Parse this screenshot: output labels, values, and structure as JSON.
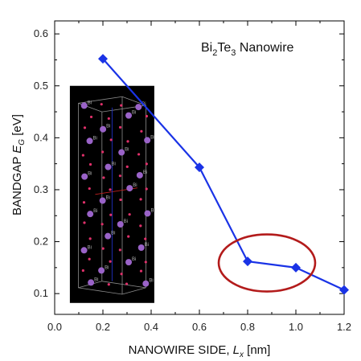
{
  "colors": {
    "series": "#1a33e6",
    "marker": "#1a33e6",
    "highlight": "#b31b1b",
    "inset_bg": "#000000",
    "atom_bi": "#9a63c8",
    "atom_te": "#e0306a"
  },
  "chart_data": {
    "type": "line",
    "title": {
      "part1": "Bi",
      "sub1": "2",
      "part2": "Te",
      "sub2": "3",
      "part3": " Nanowire"
    },
    "xlabel": {
      "main": "NANOWIRE SIDE, ",
      "var": "L",
      "sub": "x",
      "unit": " [nm]"
    },
    "ylabel": {
      "main": "BANDGAP ",
      "var": "E",
      "sub": "G",
      "unit": " [eV]"
    },
    "xlim": [
      0.0,
      1.2
    ],
    "ylim": [
      0.06,
      0.625
    ],
    "xticks": [
      "0.0",
      "0.2",
      "0.4",
      "0.6",
      "0.8",
      "1.0",
      "1.2"
    ],
    "yticks": [
      "0.1",
      "0.2",
      "0.3",
      "0.4",
      "0.5",
      "0.6"
    ],
    "grid": false,
    "series": [
      {
        "x": [
          0.2,
          0.6,
          0.8,
          1.0,
          1.2
        ],
        "y": [
          0.552,
          0.343,
          0.162,
          0.15,
          0.107
        ]
      }
    ],
    "highlight_ellipse": {
      "cx": 0.88,
      "cy": 0.159,
      "rx": 0.2,
      "ry": 0.055
    },
    "inset": {
      "description_label": "Bi",
      "x_range": [
        0.063,
        0.413
      ],
      "y_range": [
        0.082,
        0.5
      ]
    }
  }
}
